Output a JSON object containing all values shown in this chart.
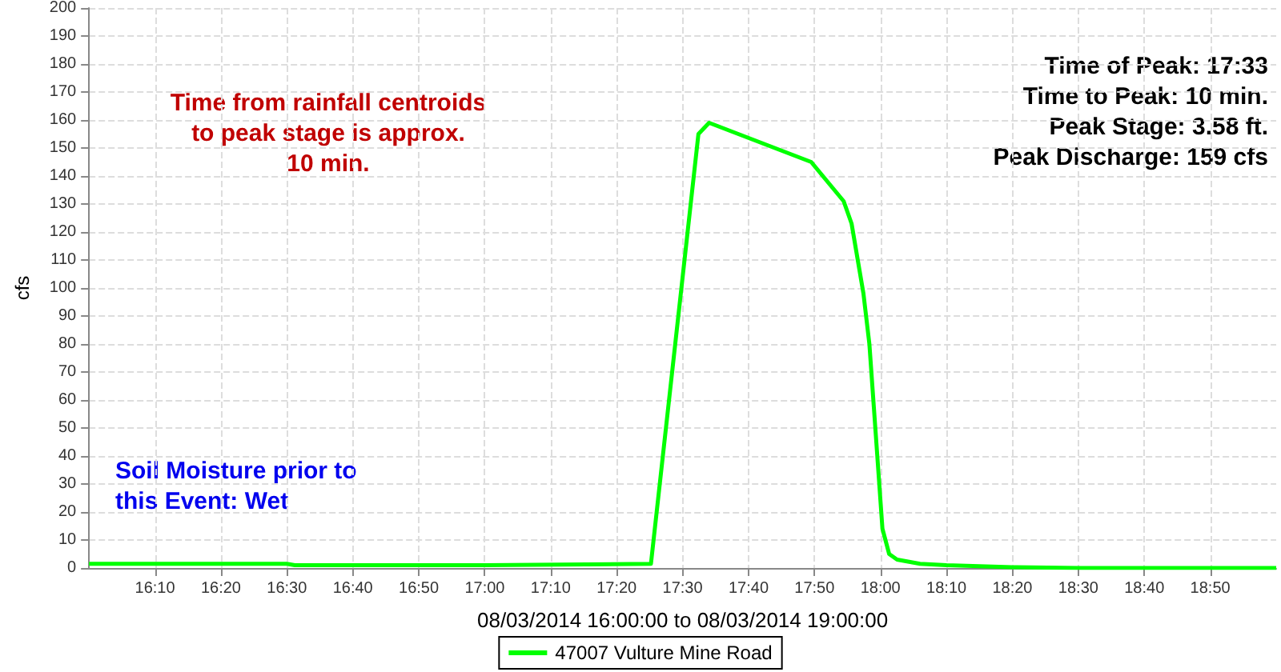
{
  "chart_data": {
    "type": "line",
    "xlabel": "08/03/2014 16:00:00 to 08/03/2014 19:00:00",
    "ylabel": "cfs",
    "x": [
      16,
      16.5,
      16.52,
      17.0,
      17.42,
      17.54,
      17.567,
      17.825,
      17.907,
      17.927,
      17.957,
      17.972,
      18.005,
      18.022,
      18.042,
      18.1,
      18.167,
      18.333,
      18.5,
      19.0
    ],
    "series": [
      {
        "name": "47007 Vulture Mine Road",
        "color": "#00ff00",
        "values": [
          1.5,
          1.5,
          1,
          1,
          1.5,
          155,
          159,
          145,
          131,
          123,
          98,
          80,
          14,
          5,
          3,
          1.5,
          1,
          0.3,
          0,
          0
        ]
      }
    ],
    "xlim": [
      16,
      19
    ],
    "xticks": [
      {
        "value": 16.1667,
        "label": "16:10"
      },
      {
        "value": 16.3333,
        "label": "16:20"
      },
      {
        "value": 16.5,
        "label": "16:30"
      },
      {
        "value": 16.6667,
        "label": "16:40"
      },
      {
        "value": 16.8333,
        "label": "16:50"
      },
      {
        "value": 17,
        "label": "17:00"
      },
      {
        "value": 17.1667,
        "label": "17:10"
      },
      {
        "value": 17.3333,
        "label": "17:20"
      },
      {
        "value": 17.5,
        "label": "17:30"
      },
      {
        "value": 17.6667,
        "label": "17:40"
      },
      {
        "value": 17.8333,
        "label": "17:50"
      },
      {
        "value": 18,
        "label": "18:00"
      },
      {
        "value": 18.1667,
        "label": "18:10"
      },
      {
        "value": 18.3333,
        "label": "18:20"
      },
      {
        "value": 18.5,
        "label": "18:30"
      },
      {
        "value": 18.6667,
        "label": "18:40"
      },
      {
        "value": 18.8333,
        "label": "18:50"
      }
    ],
    "ylim": [
      0,
      200
    ],
    "yticks": [
      0,
      10,
      20,
      30,
      40,
      50,
      60,
      70,
      80,
      90,
      100,
      110,
      120,
      130,
      140,
      150,
      160,
      170,
      180,
      190,
      200
    ],
    "annotations": [
      "Time from rainfall centroids\nto peak stage is approx.\n10 min.",
      "Time of Peak: 17:33\nTime to Peak: 10 min.\nPeak Stage: 3.58 ft.\nPeak Discharge: 159 cfs",
      "Soil Moisture prior to\nthis Event: Wet"
    ],
    "grid": true,
    "legend": "bottom",
    "marker": "none",
    "line_style": "solid"
  }
}
